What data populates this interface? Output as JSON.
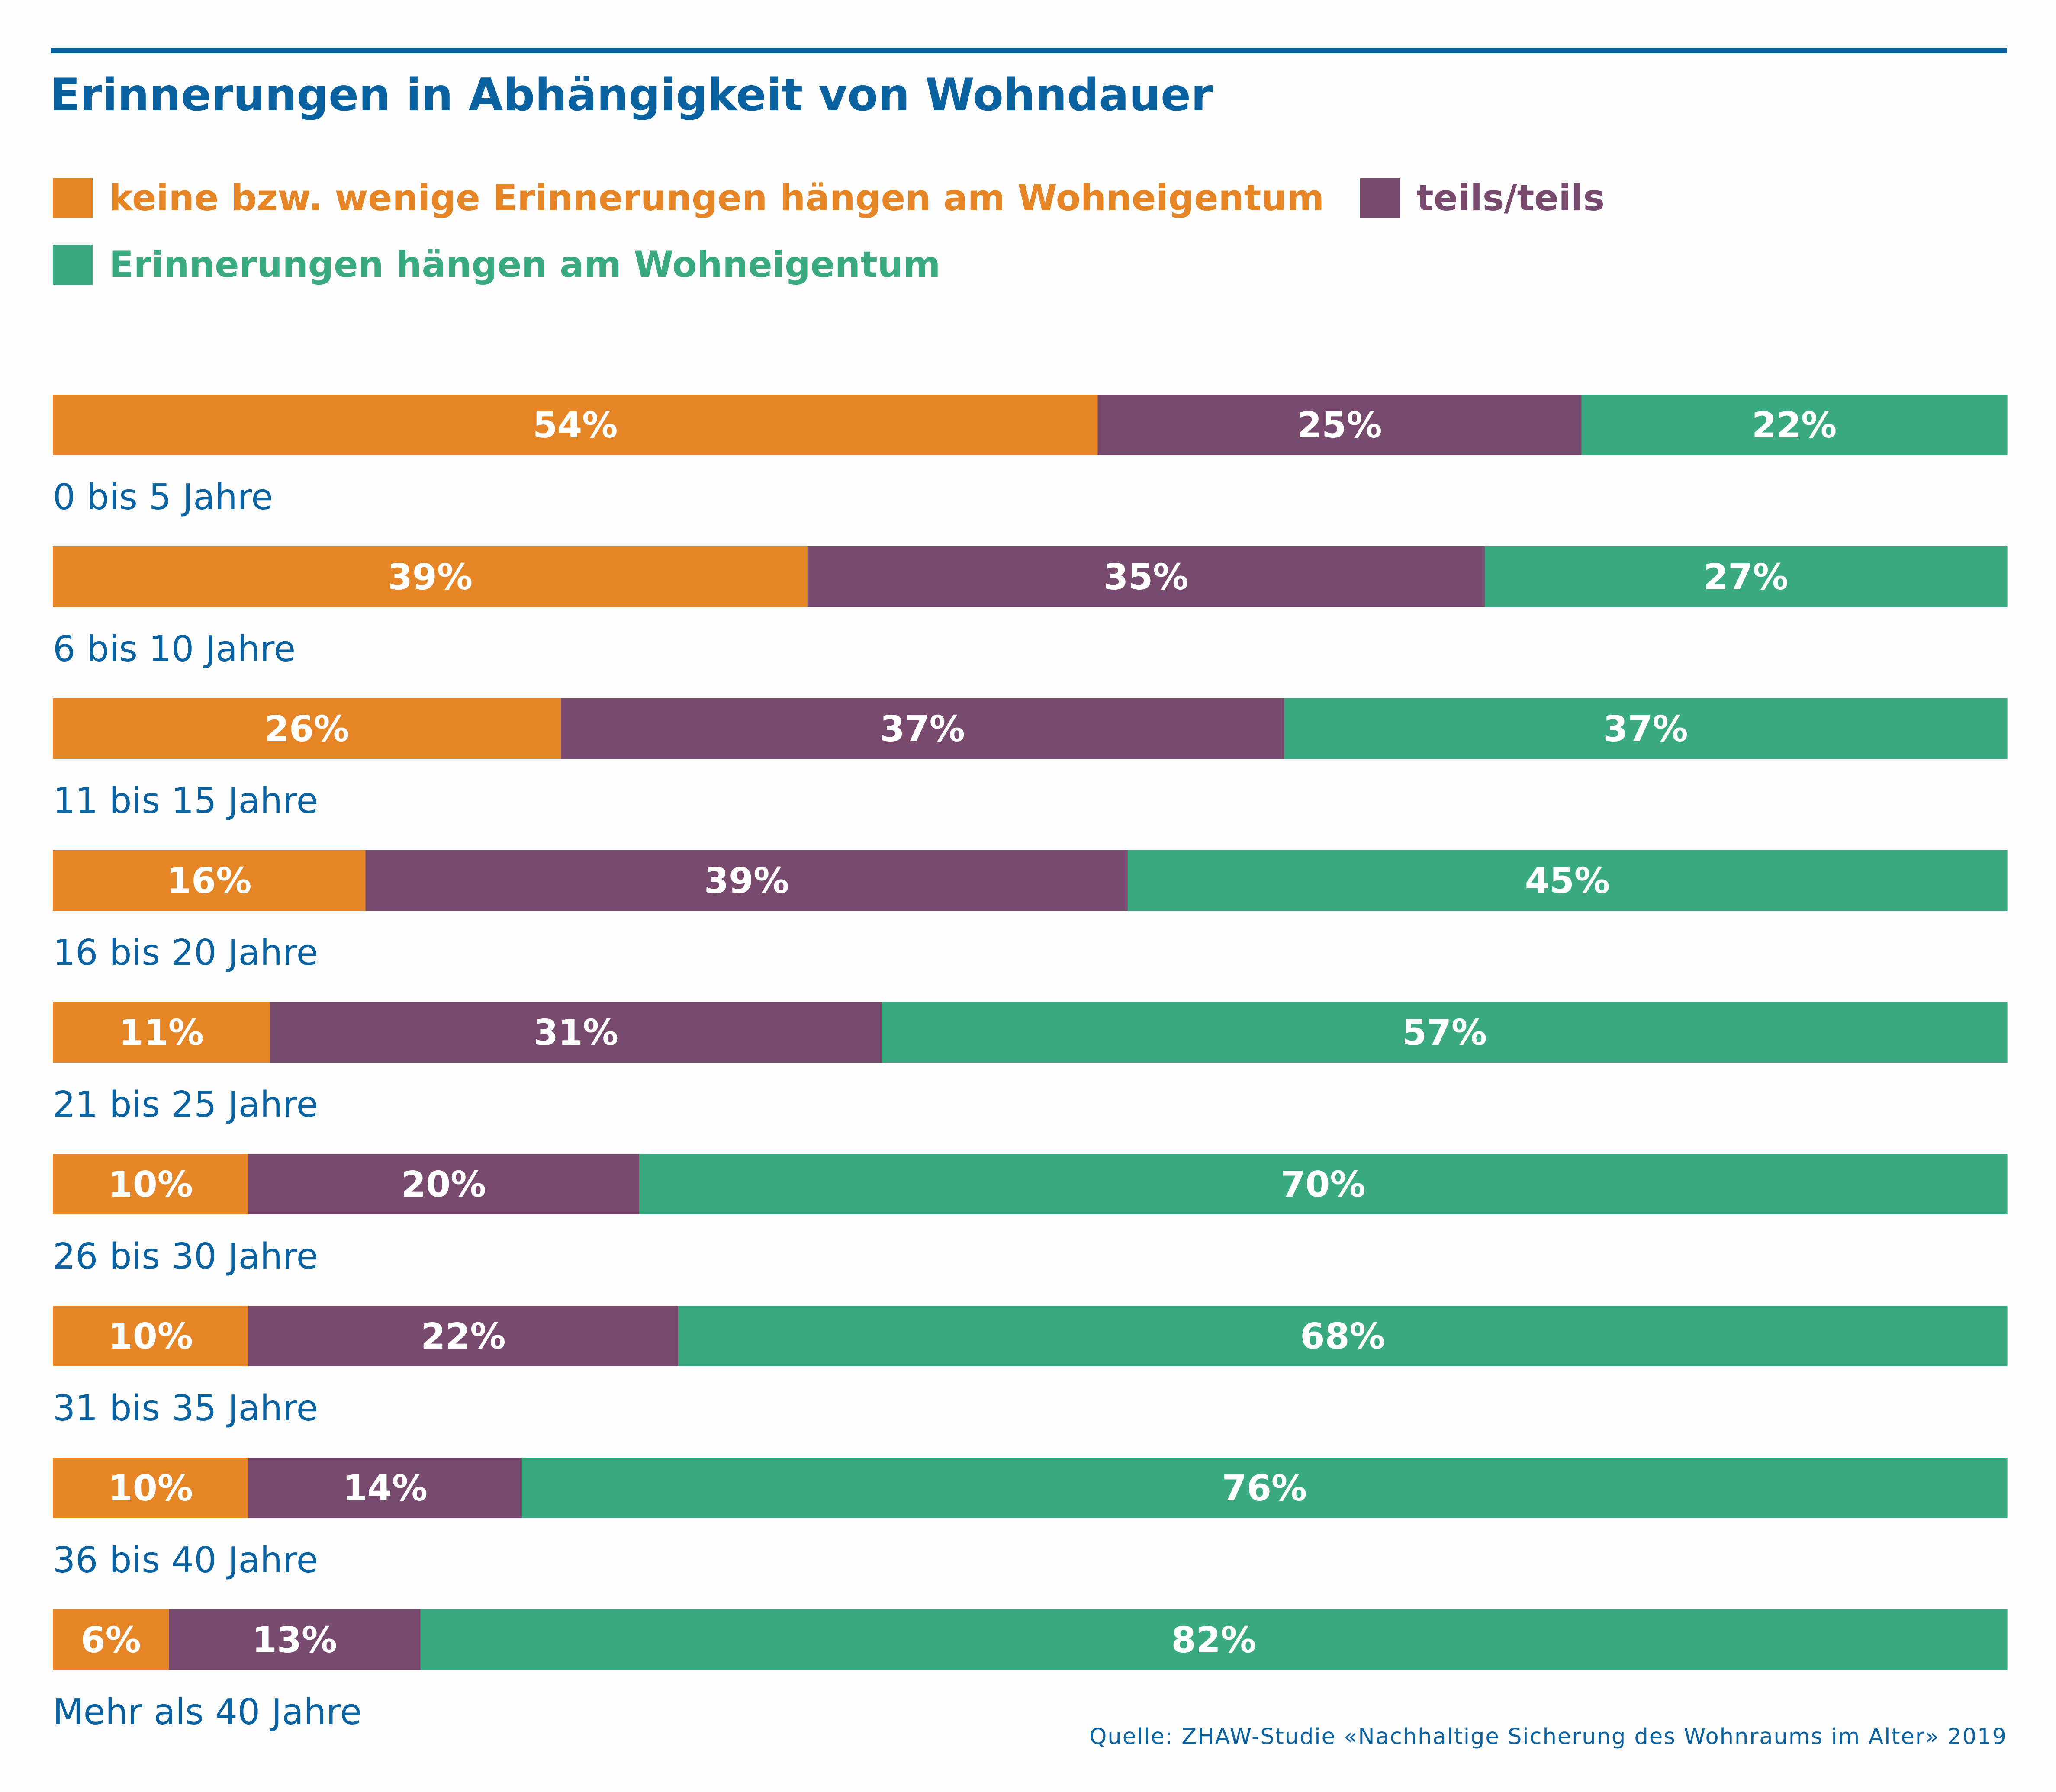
{
  "title": "Erinnerungen in Abhängigkeit von Wohndauer",
  "legend": [
    {
      "label": "keine bzw. wenige Erinnerungen hängen am Wohneigentum",
      "color": "#e58526"
    },
    {
      "label": "teils/teils",
      "color": "#784a6d"
    },
    {
      "label": "Erinnerungen hängen am Wohneigentum",
      "color": "#3aab81"
    }
  ],
  "source": "Quelle: ZHAW-Studie «Nachhaltige Sicherung des Wohnraums im Alter» 2019",
  "chart_data": {
    "type": "bar",
    "orientation": "horizontal",
    "stacked": true,
    "title": "Erinnerungen in Abhängigkeit von Wohndauer",
    "categories": [
      "0 bis 5 Jahre",
      "6 bis 10 Jahre",
      "11 bis 15 Jahre",
      "16 bis 20 Jahre",
      "21 bis 25 Jahre",
      "26 bis 30 Jahre",
      "31 bis 35 Jahre",
      "36 bis 40 Jahre",
      "Mehr als 40 Jahre"
    ],
    "series": [
      {
        "name": "keine bzw. wenige Erinnerungen hängen am Wohneigentum",
        "color": "#e58526",
        "values": [
          54,
          39,
          26,
          16,
          11,
          10,
          10,
          10,
          6
        ]
      },
      {
        "name": "teils/teils",
        "color": "#784a6d",
        "values": [
          25,
          35,
          37,
          39,
          31,
          20,
          22,
          14,
          13
        ]
      },
      {
        "name": "Erinnerungen hängen am Wohneigentum",
        "color": "#3aab81",
        "values": [
          22,
          27,
          37,
          45,
          57,
          70,
          68,
          76,
          82
        ]
      }
    ],
    "value_suffix": "%",
    "legend_position": "top-left",
    "grid": false,
    "label_color": "#0a63a0",
    "data_label_color": "#ffffff"
  }
}
